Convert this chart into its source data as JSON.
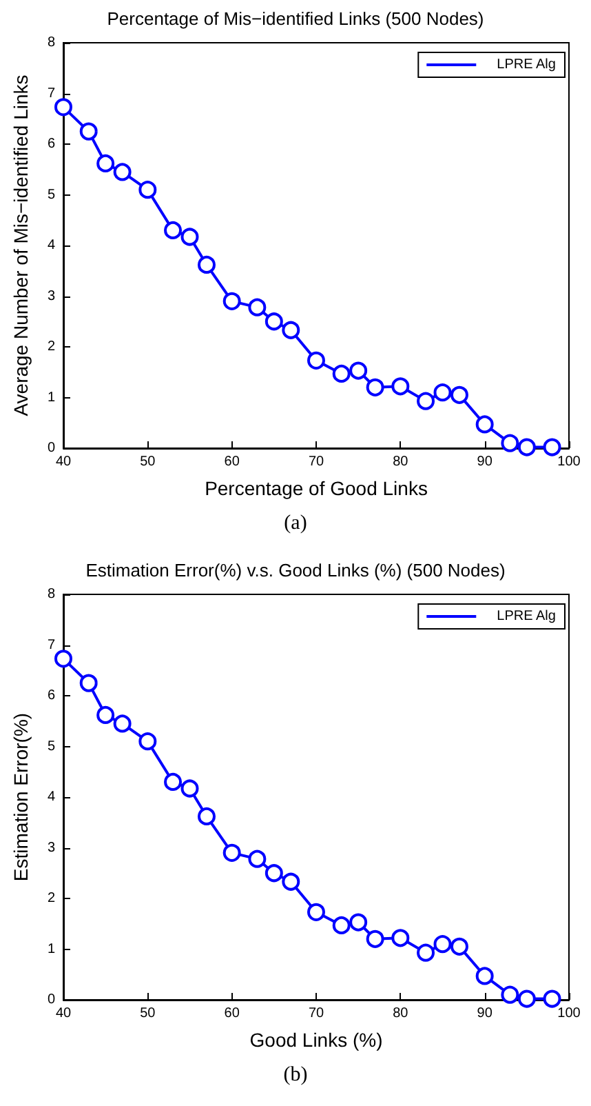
{
  "chart_data": [
    {
      "type": "line",
      "title": "Percentage of Mis−identified Links (500 Nodes)",
      "xlabel": "Percentage of Good Links",
      "ylabel": "Average Number of Mis−identified Links",
      "annotations": [
        "(a)"
      ],
      "x": [
        40,
        43,
        45,
        47,
        50,
        53,
        55,
        57,
        60,
        63,
        65,
        67,
        70,
        73,
        75,
        77,
        80,
        83,
        85,
        87,
        90,
        93,
        95,
        98
      ],
      "series": [
        {
          "name": "LPRE Alg",
          "color": "#0000ff",
          "values": [
            6.73,
            6.25,
            5.62,
            5.45,
            5.1,
            4.3,
            4.17,
            3.62,
            2.9,
            2.78,
            2.5,
            2.33,
            1.73,
            1.47,
            1.53,
            1.2,
            1.22,
            0.93,
            1.1,
            1.05,
            0.47,
            0.1,
            0.02,
            0.02
          ]
        }
      ],
      "xlim": [
        40,
        100
      ],
      "xticks": [
        40,
        50,
        60,
        70,
        80,
        90,
        100
      ],
      "ylim": [
        0,
        8
      ],
      "yticks": [
        0,
        1,
        2,
        3,
        4,
        5,
        6,
        7,
        8
      ],
      "grid": false,
      "legend": "top right",
      "marker": "circle",
      "line_style": "solid"
    },
    {
      "type": "line",
      "title": "Estimation Error(%) v.s. Good Links (%) (500 Nodes)",
      "xlabel": "Good Links (%)",
      "ylabel": "Estimation Error(%)",
      "annotations": [
        "(b)"
      ],
      "x": [
        40,
        43,
        45,
        47,
        50,
        53,
        55,
        57,
        60,
        63,
        65,
        67,
        70,
        73,
        75,
        77,
        80,
        83,
        85,
        87,
        90,
        93,
        95,
        98
      ],
      "series": [
        {
          "name": "LPRE Alg",
          "color": "#0000ff",
          "values": [
            6.73,
            6.25,
            5.62,
            5.45,
            5.1,
            4.3,
            4.17,
            3.62,
            2.9,
            2.78,
            2.5,
            2.33,
            1.73,
            1.47,
            1.53,
            1.2,
            1.22,
            0.93,
            1.1,
            1.05,
            0.47,
            0.1,
            0.02,
            0.02
          ]
        }
      ],
      "xlim": [
        40,
        100
      ],
      "xticks": [
        40,
        50,
        60,
        70,
        80,
        90,
        100
      ],
      "ylim": [
        0,
        8
      ],
      "yticks": [
        0,
        1,
        2,
        3,
        4,
        5,
        6,
        7,
        8
      ],
      "grid": false,
      "legend": "top right",
      "marker": "circle",
      "line_style": "solid"
    }
  ]
}
